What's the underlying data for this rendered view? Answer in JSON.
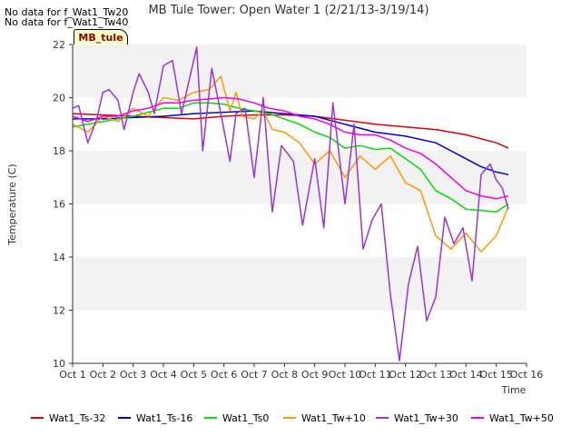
{
  "notes": [
    "No data for f_Wat1_Tw20",
    "No data for f_Wat1_Tw40"
  ],
  "badge": "MB_tule",
  "chart_data": {
    "type": "line",
    "title": "MB Tule Tower: Open Water 1 (2/21/13-3/19/14)",
    "xlabel": "Time",
    "ylabel": "Temperature (C)",
    "xlim": [
      0,
      15
    ],
    "ylim": [
      10,
      22
    ],
    "x_ticks": [
      "Oct 1",
      "Oct 2",
      "Oct 3",
      "Oct 4",
      "Oct 5",
      "Oct 6",
      "Oct 7",
      "Oct 8",
      "Oct 9",
      "Oct 10",
      "Oct 11",
      "Oct 12",
      "Oct 13",
      "Oct 14",
      "Oct 15",
      "Oct 16"
    ],
    "y_ticks": [
      10,
      12,
      14,
      16,
      18,
      20,
      22
    ],
    "grid": "horizontal bands",
    "legend_position": "bottom",
    "series": [
      {
        "name": "Wat1_Ts-32",
        "color": "#dd0000",
        "x": [
          0,
          1,
          2,
          3,
          4,
          5,
          6,
          7,
          8,
          9,
          10,
          11,
          12,
          13,
          14,
          14.4
        ],
        "y": [
          19.4,
          19.35,
          19.3,
          19.25,
          19.2,
          19.3,
          19.35,
          19.35,
          19.3,
          19.15,
          19.0,
          18.9,
          18.8,
          18.6,
          18.3,
          18.1
        ]
      },
      {
        "name": "Wat1_Ts-16",
        "color": "#0000cc",
        "x": [
          0,
          1,
          2,
          3,
          4,
          5,
          6,
          7,
          8,
          9,
          10,
          11,
          12,
          12.5,
          13,
          13.5,
          14,
          14.4
        ],
        "y": [
          19.2,
          19.2,
          19.25,
          19.3,
          19.4,
          19.45,
          19.5,
          19.4,
          19.3,
          19.0,
          18.7,
          18.55,
          18.3,
          18.0,
          17.7,
          17.4,
          17.2,
          17.1
        ]
      },
      {
        "name": "Wat1_Ts0",
        "color": "#00dd00",
        "x": [
          0,
          0.5,
          1,
          2,
          3,
          3.5,
          4,
          4.5,
          5,
          5.5,
          6,
          6.5,
          7,
          7.5,
          8,
          8.5,
          9,
          9.5,
          10,
          10.5,
          11,
          11.5,
          12,
          12.5,
          13,
          13.5,
          14,
          14.4
        ],
        "y": [
          18.9,
          19.0,
          19.1,
          19.3,
          19.6,
          19.6,
          19.8,
          19.8,
          19.75,
          19.6,
          19.5,
          19.4,
          19.2,
          19.0,
          18.7,
          18.5,
          18.1,
          18.2,
          18.05,
          18.1,
          17.7,
          17.3,
          16.5,
          16.2,
          15.8,
          15.75,
          15.7,
          16.0
        ]
      },
      {
        "name": "Wat1_Tw+10",
        "color": "#ff9900",
        "x": [
          0,
          0.5,
          1,
          1.5,
          2,
          2.5,
          3,
          3.5,
          4,
          4.5,
          4.9,
          5.2,
          5.4,
          5.6,
          6,
          6.3,
          6.6,
          7,
          7.5,
          8,
          8.5,
          9,
          9.5,
          10,
          10.5,
          11,
          11.5,
          12,
          12.5,
          13,
          13.5,
          14,
          14.4
        ],
        "y": [
          19.0,
          18.7,
          19.3,
          19.1,
          19.6,
          19.3,
          20.0,
          19.9,
          20.2,
          20.3,
          20.8,
          19.5,
          20.2,
          19.3,
          19.2,
          19.5,
          18.8,
          18.7,
          18.3,
          17.5,
          18.0,
          17.0,
          17.8,
          17.3,
          17.8,
          16.8,
          16.5,
          14.8,
          14.3,
          14.9,
          14.2,
          14.8,
          15.9
        ]
      },
      {
        "name": "Wat1_Tw+30",
        "color": "#9933dd",
        "x": [
          0,
          0.2,
          0.5,
          0.8,
          1,
          1.2,
          1.5,
          1.7,
          2,
          2.2,
          2.5,
          2.7,
          3,
          3.3,
          3.6,
          3.9,
          4.1,
          4.3,
          4.6,
          4.9,
          5.2,
          5.4,
          5.7,
          6,
          6.3,
          6.6,
          6.9,
          7.3,
          7.6,
          8,
          8.3,
          8.6,
          9,
          9.3,
          9.6,
          9.9,
          10.2,
          10.5,
          10.8,
          11.1,
          11.4,
          11.7,
          12,
          12.3,
          12.6,
          12.9,
          13.2,
          13.5,
          13.8,
          14,
          14.2,
          14.4
        ],
        "y": [
          19.6,
          19.7,
          18.3,
          19.2,
          20.2,
          20.3,
          19.9,
          18.8,
          20.2,
          20.9,
          20.2,
          19.4,
          21.2,
          21.4,
          19.4,
          20.9,
          21.9,
          18.0,
          21.1,
          19.4,
          17.6,
          19.4,
          19.6,
          17.0,
          20.0,
          15.7,
          18.2,
          17.6,
          15.2,
          17.7,
          15.1,
          19.8,
          16.0,
          19.0,
          14.3,
          15.4,
          16.0,
          12.6,
          10.1,
          13.0,
          14.4,
          11.6,
          12.5,
          15.5,
          14.5,
          15.1,
          13.1,
          17.1,
          17.5,
          16.9,
          16.6,
          15.8
        ]
      },
      {
        "name": "Wat1_Tw+50",
        "color": "#ee00ee",
        "x": [
          0,
          0.5,
          1,
          1.5,
          2,
          2.5,
          3,
          3.5,
          4,
          4.5,
          5,
          5.5,
          6,
          6.5,
          7,
          7.5,
          8,
          8.5,
          9,
          9.5,
          10,
          10.5,
          11,
          11.5,
          12,
          12.5,
          13,
          13.5,
          14,
          14.4
        ],
        "y": [
          19.3,
          19.1,
          19.3,
          19.3,
          19.5,
          19.6,
          19.8,
          19.8,
          19.9,
          19.95,
          20.0,
          19.95,
          19.8,
          19.6,
          19.5,
          19.3,
          19.2,
          19.0,
          18.7,
          18.6,
          18.6,
          18.4,
          18.1,
          17.9,
          17.5,
          17.0,
          16.5,
          16.3,
          16.2,
          16.3
        ]
      }
    ]
  }
}
